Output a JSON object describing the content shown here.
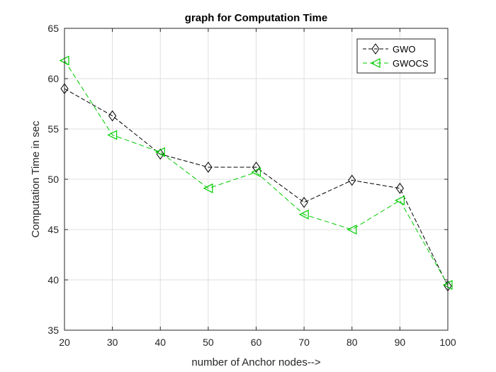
{
  "chart_data": {
    "type": "line",
    "title": "graph for Computation Time",
    "xlabel": "number of Anchor nodes-->",
    "ylabel": "Computation Time in sec",
    "x": [
      20,
      30,
      40,
      50,
      60,
      70,
      80,
      90,
      100
    ],
    "xlim": [
      20,
      100
    ],
    "ylim": [
      35,
      65
    ],
    "xticks": [
      "20",
      "30",
      "40",
      "50",
      "60",
      "70",
      "80",
      "90",
      "100"
    ],
    "yticks": [
      "35",
      "40",
      "45",
      "50",
      "55",
      "60",
      "65"
    ],
    "grid": true,
    "legend_position": "top-right",
    "series": [
      {
        "name": "GWO",
        "values": [
          59.0,
          56.3,
          52.5,
          51.2,
          51.2,
          47.7,
          49.9,
          49.1,
          39.4
        ],
        "color": "#000000",
        "marker": "diamond",
        "line": "dashed"
      },
      {
        "name": "GWOCS",
        "values": [
          61.8,
          54.4,
          52.7,
          49.1,
          50.7,
          46.5,
          45.0,
          47.9,
          39.5
        ],
        "color": "#00cc00",
        "marker": "triangle-left",
        "line": "dashed"
      }
    ]
  }
}
